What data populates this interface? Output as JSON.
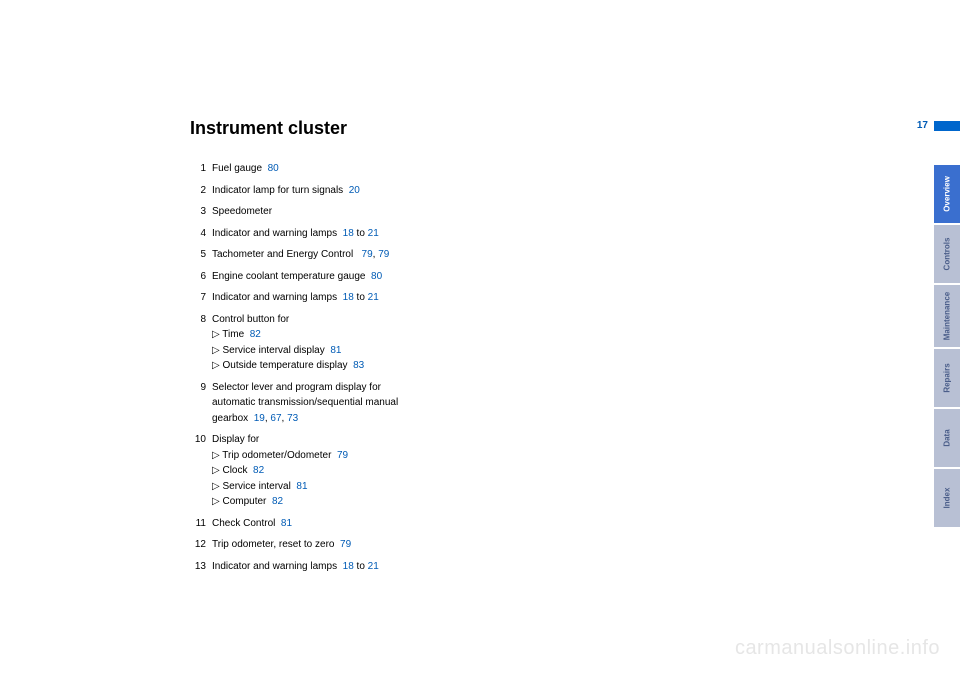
{
  "page": {
    "number": "17",
    "heading": "Instrument cluster"
  },
  "items": [
    {
      "n": "1",
      "text": "Fuel gauge",
      "refs": [
        "80"
      ]
    },
    {
      "n": "2",
      "text": "Indicator lamp for turn signals",
      "refs": [
        "20"
      ]
    },
    {
      "n": "3",
      "text": "Speedometer",
      "refs": []
    },
    {
      "n": "4",
      "text": "Indicator and warning lamps",
      "refs": [
        "18"
      ],
      "tail": " to ",
      "refs2": [
        "21"
      ]
    },
    {
      "n": "5",
      "text": "Tachometer and Energy Control ",
      "refs": [
        "79"
      ],
      "tail": ", ",
      "refs2": [
        "79"
      ]
    },
    {
      "n": "6",
      "text": "Engine coolant temperature gauge",
      "refs": [
        "80"
      ]
    },
    {
      "n": "7",
      "text": "Indicator and warning lamps",
      "refs": [
        "18"
      ],
      "tail": " to ",
      "refs2": [
        "21"
      ]
    },
    {
      "n": "8",
      "text": "Control button for",
      "subs": [
        {
          "t": "Time",
          "refs": [
            "82"
          ]
        },
        {
          "t": "Service interval display",
          "refs": [
            "81"
          ]
        },
        {
          "t": "Outside temperature display",
          "refs": [
            "83"
          ]
        }
      ]
    },
    {
      "n": "9",
      "text": "Selector lever and program display for automatic transmission/sequential manual gearbox",
      "refs": [
        "19",
        "67",
        "73"
      ]
    },
    {
      "n": "10",
      "text": "Display for",
      "subs": [
        {
          "t": "Trip odometer/Odometer",
          "refs": [
            "79"
          ]
        },
        {
          "t": "Clock",
          "refs": [
            "82"
          ]
        },
        {
          "t": "Service interval",
          "refs": [
            "81"
          ]
        },
        {
          "t": "Computer",
          "refs": [
            "82"
          ]
        }
      ]
    },
    {
      "n": "11",
      "text": "Check Control",
      "refs": [
        "81"
      ]
    },
    {
      "n": "12",
      "text": "Trip odometer, reset to zero",
      "refs": [
        "79"
      ]
    },
    {
      "n": "13",
      "text": "Indicator and warning lamps",
      "refs": [
        "18"
      ],
      "tail": " to ",
      "refs2": [
        "21"
      ]
    }
  ],
  "tabs": [
    {
      "label": "Overview",
      "active": true
    },
    {
      "label": "Controls",
      "active": false
    },
    {
      "label": "Maintenance",
      "active": false,
      "cls": "maint"
    },
    {
      "label": "Repairs",
      "active": false
    },
    {
      "label": "Data",
      "active": false
    },
    {
      "label": "Index",
      "active": false
    }
  ],
  "watermark": "carmanualsonline.info",
  "colors": {
    "ref": "#005bb5",
    "tab_active_bg": "#3a6fcf",
    "tab_inactive_bg": "#b8c0d4",
    "tab_inactive_text": "#4b5e8a"
  }
}
